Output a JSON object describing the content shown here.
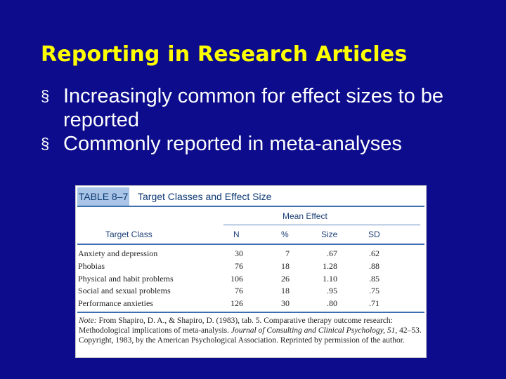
{
  "slide": {
    "title": "Reporting in Research Articles",
    "bullet_marker": "§",
    "bullets": [
      "Increasingly common for effect sizes to be reported",
      "Commonly reported in meta-analyses"
    ]
  },
  "table": {
    "label": "TABLE 8–7",
    "title": "Target Classes and Effect Size",
    "group_header": "Mean Effect",
    "columns": [
      "Target Class",
      "N",
      "%",
      "Size",
      "SD"
    ],
    "rows": [
      {
        "target": "Anxiety and depression",
        "n": "30",
        "pct": "7",
        "size": ".67",
        "sd": ".62"
      },
      {
        "target": "Phobias",
        "n": "76",
        "pct": "18",
        "size": "1.28",
        "sd": ".88"
      },
      {
        "target": "Physical and habit problems",
        "n": "106",
        "pct": "26",
        "size": "1.10",
        "sd": ".85"
      },
      {
        "target": "Social and sexual problems",
        "n": "76",
        "pct": "18",
        "size": ".95",
        "sd": ".75"
      },
      {
        "target": "Performance anxieties",
        "n": "126",
        "pct": "30",
        "size": ".80",
        "sd": ".71"
      }
    ],
    "note": {
      "label": "Note:",
      "source_start": "From Shapiro, D. A., & Shapiro, D. (1983), tab. 5. Comparative therapy outcome research: Methodological implications of meta-analysis.",
      "journal": "Journal of Consulting and Clinical Psychology, 51,",
      "source_end": "42–53. Copyright, 1983, by the American Psychological Association. Reprinted by permission of the author."
    }
  },
  "colors": {
    "background": "#0c0c8c",
    "title": "#ffff00",
    "text": "#ffffff",
    "table_label_bg": "#a9c4e6",
    "table_heading": "#0d3a73"
  }
}
